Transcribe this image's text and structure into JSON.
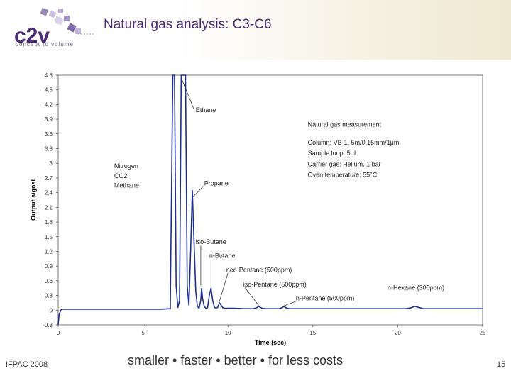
{
  "header": {
    "title": "Natural gas analysis: C3-C6",
    "logo_text": "c2v",
    "logo_tagline": "concept to volume",
    "accent_color": "#4b2a78"
  },
  "footer": {
    "left": "IFPAC 2008",
    "tagline": "smaller • faster • better • for less costs",
    "page_number": "15"
  },
  "chart_data": {
    "type": "line",
    "title": "",
    "xlabel": "Time (sec)",
    "ylabel": "Output signal",
    "xlim": [
      0,
      25
    ],
    "ylim": [
      -0.3,
      4.8
    ],
    "x_ticks": [
      "0",
      "5",
      "10",
      "15",
      "20",
      "25"
    ],
    "y_ticks": [
      "-0.3",
      "0",
      "0.3",
      "0.6",
      "0.9",
      "1.2",
      "1.5",
      "1.8",
      "2.1",
      "2.4",
      "2.7",
      "3",
      "3.3",
      "3.6",
      "3.9",
      "4.2",
      "4.5",
      "4.8"
    ],
    "grid": false,
    "line_color": "#1f2f8f",
    "series": [
      {
        "x": [
          0.0,
          0.05,
          0.15,
          0.2,
          0.4,
          1,
          3,
          6,
          6.6,
          6.75,
          6.85,
          6.95,
          7.05,
          7.15,
          7.25,
          7.35,
          7.5,
          7.6,
          7.7,
          7.8,
          7.9,
          8.0,
          8.1,
          8.2,
          8.3,
          8.4,
          8.45,
          8.5,
          8.6,
          8.7,
          8.8,
          8.9,
          9.0,
          9.1,
          9.2,
          9.3,
          9.4,
          9.5,
          9.6,
          9.7,
          9.8,
          10.0,
          10.3,
          11.0,
          11.5,
          11.7,
          11.8,
          11.9,
          12.0,
          12.2,
          12.6,
          13.0,
          13.2,
          13.3,
          13.4,
          13.6,
          14.0,
          16,
          18,
          20.5,
          20.8,
          21.0,
          21.2,
          21.5,
          22,
          23,
          24,
          25
        ],
        "y": [
          -0.3,
          -0.1,
          0.0,
          0.02,
          0.02,
          0.02,
          0.02,
          0.02,
          0.03,
          4.8,
          4.8,
          0.5,
          0.05,
          0.2,
          4.8,
          4.8,
          4.8,
          0.5,
          0.1,
          1.2,
          2.45,
          1.4,
          0.4,
          0.08,
          0.04,
          0.2,
          0.45,
          0.25,
          0.08,
          0.04,
          0.05,
          0.3,
          0.45,
          0.2,
          0.06,
          0.04,
          0.06,
          0.15,
          0.1,
          0.05,
          0.04,
          0.04,
          0.04,
          0.03,
          0.03,
          0.05,
          0.08,
          0.06,
          0.04,
          0.03,
          0.03,
          0.03,
          0.05,
          0.08,
          0.05,
          0.03,
          0.03,
          0.03,
          0.03,
          0.03,
          0.05,
          0.08,
          0.06,
          0.03,
          0.03,
          0.03,
          0.03,
          0.03
        ]
      }
    ],
    "annotations": [
      {
        "text": "Ethane",
        "x": 8.1,
        "y": 4.05
      },
      {
        "text": "Nitrogen",
        "x": 3.3,
        "y": 2.9
      },
      {
        "text": "CO2",
        "x": 3.3,
        "y": 2.7
      },
      {
        "text": "Methane",
        "x": 3.3,
        "y": 2.5
      },
      {
        "text": "Propane",
        "x": 8.6,
        "y": 2.55
      },
      {
        "text": "iso-Butane",
        "x": 8.1,
        "y": 1.35
      },
      {
        "text": "n-Butane",
        "x": 8.9,
        "y": 1.07
      },
      {
        "text": "neo-Pentane (500ppm)",
        "x": 9.9,
        "y": 0.78
      },
      {
        "text": "iso-Pentane (500ppm)",
        "x": 10.9,
        "y": 0.48
      },
      {
        "text": "n-Pentane (500ppm)",
        "x": 14.0,
        "y": 0.2
      },
      {
        "text": "n-Hexane (300ppm)",
        "x": 19.4,
        "y": 0.42
      },
      {
        "text": "Natural gas measurement",
        "x": 14.7,
        "y": 3.75
      },
      {
        "text": "Column: VB-1, 5m/0.15mm/1μm",
        "x": 14.7,
        "y": 3.38
      },
      {
        "text": "Sample loop: 5μL",
        "x": 14.7,
        "y": 3.16
      },
      {
        "text": "Carrier gas: Helium, 1 bar",
        "x": 14.7,
        "y": 2.94
      },
      {
        "text": "Oven temperature: 55°C",
        "x": 14.7,
        "y": 2.72
      }
    ]
  }
}
